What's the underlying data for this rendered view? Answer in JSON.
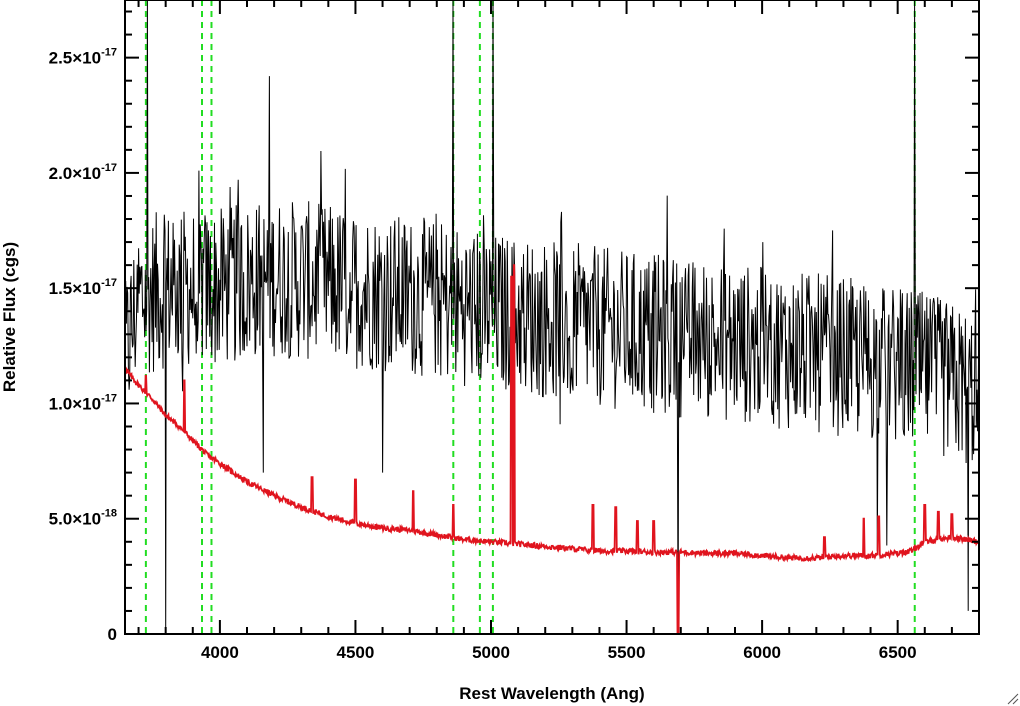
{
  "chart_data": {
    "type": "line",
    "xlabel": "Rest Wavelength (Ang)",
    "ylabel": "Relative Flux (cgs)",
    "xlim": [
      3650,
      6800
    ],
    "ylim": [
      0,
      2.75e-17
    ],
    "x_ticks": [
      {
        "value": 4000,
        "label": "4000"
      },
      {
        "value": 4500,
        "label": "4500"
      },
      {
        "value": 5000,
        "label": "5000"
      },
      {
        "value": 5500,
        "label": "5500"
      },
      {
        "value": 6000,
        "label": "6000"
      },
      {
        "value": 6500,
        "label": "6500"
      }
    ],
    "y_ticks": [
      {
        "value": 0,
        "mant": "0",
        "exp": ""
      },
      {
        "value": 5e-18,
        "mant": "5.0×10",
        "exp": "-18"
      },
      {
        "value": 1e-17,
        "mant": "1.0×10",
        "exp": "-17"
      },
      {
        "value": 1.5e-17,
        "mant": "1.5×10",
        "exp": "-17"
      },
      {
        "value": 2e-17,
        "mant": "2.0×10",
        "exp": "-17"
      },
      {
        "value": 2.5e-17,
        "mant": "2.5×10",
        "exp": "-17"
      }
    ],
    "reference_lines_x": [
      3727,
      3934,
      3969,
      4861,
      4959,
      5007,
      6563
    ],
    "series": [
      {
        "color": "#000000",
        "style": "solid-noisy",
        "baseline_x": [
          3650,
          3700,
          3800,
          4000,
          4200,
          4500,
          4800,
          5000,
          5300,
          5600,
          6000,
          6300,
          6560,
          6800
        ],
        "baseline_y": [
          1.2e-17,
          1.45e-17,
          1.5e-17,
          1.5e-17,
          1.55e-17,
          1.5e-17,
          1.45e-17,
          1.4e-17,
          1.35e-17,
          1.3e-17,
          1.25e-17,
          1.2e-17,
          1.15e-17,
          1.05e-17
        ],
        "noise_amplitude": 3.5e-18,
        "spikes": [
          {
            "x": 3733,
            "y": 2.75e-17
          },
          {
            "x": 3800,
            "y": 0
          },
          {
            "x": 4860,
            "y": 2.75e-17
          },
          {
            "x": 5007,
            "y": 2.75e-17
          },
          {
            "x": 6563,
            "y": 2.75e-17
          },
          {
            "x": 5690,
            "y": 0
          },
          {
            "x": 4600,
            "y": 7e-18
          },
          {
            "x": 4160,
            "y": 7e-18
          },
          {
            "x": 6760,
            "y": 1e-18
          }
        ]
      },
      {
        "color": "#e0141e",
        "style": "solid",
        "x": [
          3650,
          3700,
          3750,
          3800,
          3850,
          3900,
          3950,
          4000,
          4100,
          4200,
          4300,
          4400,
          4500,
          4600,
          4700,
          4800,
          4900,
          5000,
          5100,
          5200,
          5300,
          5400,
          5500,
          5600,
          5700,
          5800,
          5900,
          6000,
          6100,
          6200,
          6300,
          6400,
          6500,
          6550,
          6600,
          6700,
          6800
        ],
        "y": [
          1.15e-17,
          1.08e-17,
          1.02e-17,
          9.5e-18,
          9e-18,
          8.4e-18,
          7.8e-18,
          7.4e-18,
          6.6e-18,
          6e-18,
          5.5e-18,
          5.1e-18,
          4.8e-18,
          4.6e-18,
          4.5e-18,
          4.3e-18,
          4.1e-18,
          4e-18,
          3.9e-18,
          3.8e-18,
          3.7e-18,
          3.6e-18,
          3.6e-18,
          3.55e-18,
          3.55e-18,
          3.5e-18,
          3.5e-18,
          3.4e-18,
          3.3e-18,
          3.3e-18,
          3.4e-18,
          3.4e-18,
          3.5e-18,
          3.6e-18,
          4e-18,
          4.2e-18,
          4e-18
        ],
        "emission_lines": [
          {
            "x": 3727,
            "y": 1.12e-17
          },
          {
            "x": 3869,
            "y": 1.1e-17
          },
          {
            "x": 4340,
            "y": 6.8e-18
          },
          {
            "x": 4500,
            "y": 6.7e-18
          },
          {
            "x": 4713,
            "y": 6.2e-18
          },
          {
            "x": 4861,
            "y": 5.6e-18
          },
          {
            "x": 5076,
            "y": 1.55e-17
          },
          {
            "x": 5085,
            "y": 1.6e-17
          },
          {
            "x": 5376,
            "y": 5.6e-18
          },
          {
            "x": 5460,
            "y": 5.5e-18
          },
          {
            "x": 5540,
            "y": 4.9e-18
          },
          {
            "x": 5600,
            "y": 4.9e-18
          },
          {
            "x": 6230,
            "y": 4.2e-18
          },
          {
            "x": 6375,
            "y": 5e-18
          },
          {
            "x": 6430,
            "y": 5.1e-18
          },
          {
            "x": 6600,
            "y": 5.6e-18
          },
          {
            "x": 6650,
            "y": 5.3e-18
          },
          {
            "x": 6700,
            "y": 5.2e-18
          }
        ],
        "absorption_lines": [
          {
            "x": 5690,
            "y": 0
          }
        ]
      }
    ]
  }
}
